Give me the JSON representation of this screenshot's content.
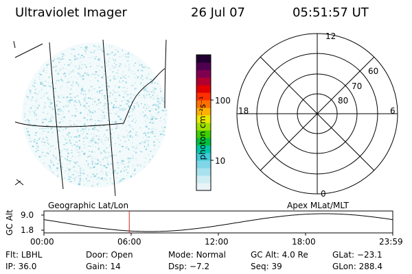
{
  "header": {
    "title": "Ultraviolet Imager",
    "date": "26 Jul 07",
    "time": "05:51:57 UT"
  },
  "colorbar": {
    "unit_label": "photon cm⁻²s⁻¹",
    "ticks": [
      "100",
      "10"
    ],
    "colors": [
      "#e8f4f8",
      "#cfeef4",
      "#a8e2ee",
      "#7fd6e6",
      "#40ccd8",
      "#00c8a8",
      "#00c040",
      "#40d000",
      "#a0e000",
      "#e8e800",
      "#ffb000",
      "#ff7000",
      "#ff3000",
      "#e00000",
      "#b00030",
      "#800050",
      "#500050",
      "#200030"
    ]
  },
  "polar": {
    "mlt_labels": [
      "12",
      "18",
      "6",
      "0"
    ],
    "mlat_labels": [
      "60",
      "70",
      "80"
    ]
  },
  "orbit": {
    "left_label": "Geographic Lat/Lon",
    "right_label": "Apex MLat/MLT",
    "axis_label": "GC Alt",
    "y_ticks": [
      "9.0",
      "1.8"
    ],
    "x_ticks": [
      "00:00",
      "06:00",
      "12:00",
      "18:00",
      "23:59"
    ],
    "current_marker_hour": 5.87,
    "marker_color": "#cc2222"
  },
  "info": {
    "row1": [
      {
        "key": "Flt:",
        "val": "LBHL"
      },
      {
        "key": "Door:",
        "val": "Open"
      },
      {
        "key": "Mode:",
        "val": "Normal"
      },
      {
        "key": "GC Alt:",
        "val": "4.0 Re"
      },
      {
        "key": "GLat:",
        "val": "−23.1"
      }
    ],
    "row2": [
      {
        "key": "IP:",
        "val": "36.0"
      },
      {
        "key": "Gain:",
        "val": "14"
      },
      {
        "key": "Dsp:",
        "val": "−7.2"
      },
      {
        "key": "Seq:",
        "val": "39"
      },
      {
        "key": "GLon:",
        "val": "288.4"
      }
    ]
  }
}
